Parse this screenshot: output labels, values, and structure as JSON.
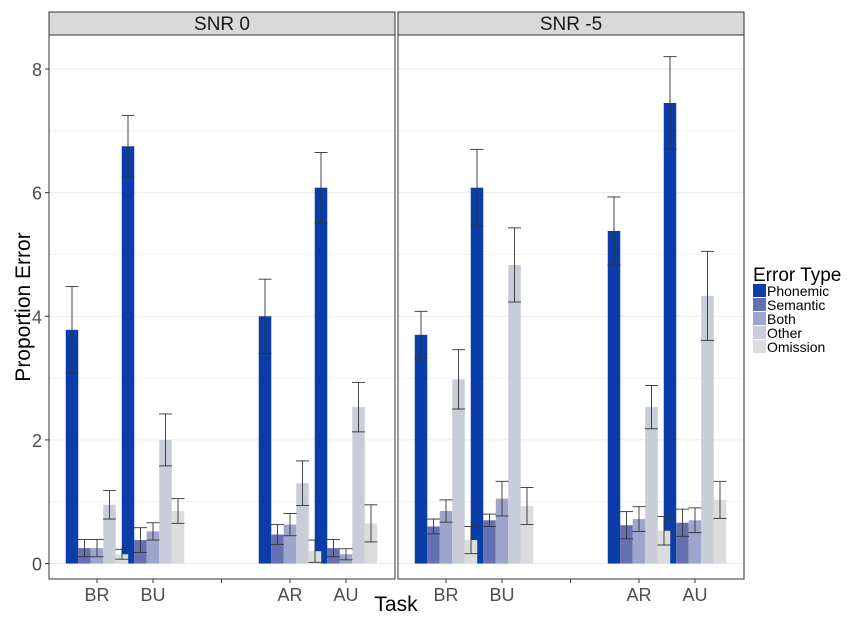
{
  "chart_data": {
    "type": "bar",
    "xlabel": "Task",
    "ylabel": "Proportion Error",
    "ylim": [
      -0.25,
      8.55
    ],
    "yticks": [
      0,
      2,
      4,
      6,
      8
    ],
    "grid": true,
    "legend": {
      "title": "Error Type",
      "placement": "right",
      "items": [
        "Phonemic",
        "Semantic",
        "Both",
        "Other",
        "Omission"
      ]
    },
    "colors": {
      "Phonemic": "#0a3da8",
      "Semantic": "#6470b0",
      "Both": "#9ea5cc",
      "Other": "#c9ccd9",
      "Omission": "#dcdcdc"
    },
    "categories": [
      "BR",
      "BU",
      "AR",
      "AU"
    ],
    "panels": [
      {
        "title": "SNR 0",
        "series": [
          {
            "name": "Phonemic",
            "values": [
              3.78,
              6.75,
              4.0,
              6.08
            ],
            "errors": [
              0.7,
              0.5,
              0.6,
              0.57
            ]
          },
          {
            "name": "Semantic",
            "values": [
              0.25,
              0.38,
              0.47,
              0.25
            ],
            "errors": [
              0.14,
              0.2,
              0.16,
              0.14
            ]
          },
          {
            "name": "Both",
            "values": [
              0.25,
              0.52,
              0.63,
              0.15
            ],
            "errors": [
              0.14,
              0.14,
              0.18,
              0.09
            ]
          },
          {
            "name": "Other",
            "values": [
              0.95,
              2.0,
              1.3,
              2.53
            ],
            "errors": [
              0.23,
              0.42,
              0.36,
              0.4
            ]
          },
          {
            "name": "Omission",
            "values": [
              0.15,
              0.85,
              0.2,
              0.65
            ],
            "errors": [
              0.08,
              0.2,
              0.18,
              0.3
            ]
          }
        ]
      },
      {
        "title": "SNR -5",
        "series": [
          {
            "name": "Phonemic",
            "values": [
              3.7,
              6.08,
              5.38,
              7.45
            ],
            "errors": [
              0.38,
              0.62,
              0.55,
              0.75
            ]
          },
          {
            "name": "Semantic",
            "values": [
              0.6,
              0.7,
              0.62,
              0.66
            ],
            "errors": [
              0.12,
              0.1,
              0.22,
              0.22
            ]
          },
          {
            "name": "Both",
            "values": [
              0.85,
              1.05,
              0.72,
              0.7
            ],
            "errors": [
              0.18,
              0.28,
              0.2,
              0.2
            ]
          },
          {
            "name": "Other",
            "values": [
              2.98,
              4.83,
              2.53,
              4.33
            ],
            "errors": [
              0.48,
              0.6,
              0.35,
              0.72
            ]
          },
          {
            "name": "Omission",
            "values": [
              0.38,
              0.93,
              0.53,
              1.03
            ],
            "errors": [
              0.22,
              0.3,
              0.23,
              0.3
            ]
          }
        ]
      }
    ]
  }
}
